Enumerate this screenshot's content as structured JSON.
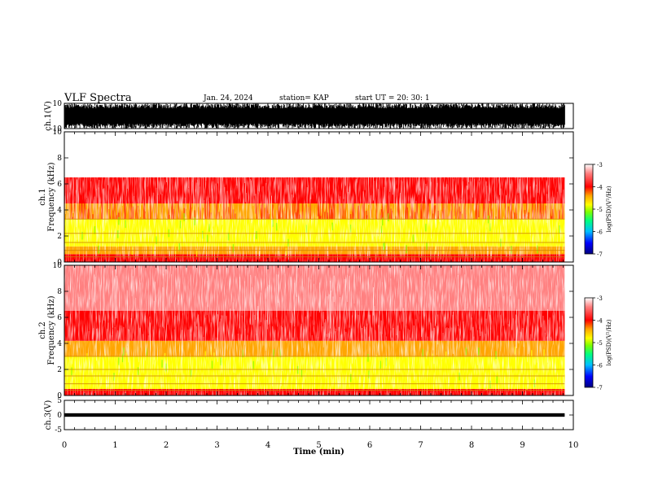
{
  "header": {
    "title": "VLF Spectra",
    "date": "Jan. 24, 2024",
    "station": "station= KAP",
    "start": "start  UT =   20: 30: 1"
  },
  "colors": {
    "background": "#ffffff",
    "axis": "#000000",
    "waveform": "#000000",
    "colormap": [
      "#000080",
      "#0000ff",
      "#00bfff",
      "#00ff80",
      "#80ff00",
      "#ffff00",
      "#ffa500",
      "#ff0000",
      "#ff8080",
      "#ffffff"
    ]
  },
  "chart_data": [
    {
      "type": "line",
      "panel": "ch1-waveform",
      "ylabel": "ch.1(V)",
      "xlim": [
        0,
        10
      ],
      "ylim": [
        -10,
        10
      ],
      "yticks": [
        -10,
        10
      ],
      "signal": "dense noise clipping near ±10 V over 0–9.83 min"
    },
    {
      "type": "heatmap",
      "panel": "ch1-spectrogram",
      "ylabel": "ch.1\nFrequency (kHz)",
      "xlim": [
        0,
        10
      ],
      "ylim": [
        0,
        10
      ],
      "yticks": [
        0,
        2,
        4,
        6,
        8,
        10
      ],
      "colorbar": {
        "label": "log(PSD)(V²/Hz)",
        "range": [
          -7,
          -3
        ],
        "ticks": [
          -7,
          -6,
          -5,
          -4,
          -3
        ]
      },
      "bands_kHz": [
        {
          "from": 0,
          "to": 0.6,
          "level": -4.0
        },
        {
          "from": 0.6,
          "to": 1.2,
          "level": -4.3
        },
        {
          "from": 1.2,
          "to": 3.3,
          "level": -4.6
        },
        {
          "from": 3.3,
          "to": 4.5,
          "level": -4.2
        },
        {
          "from": 4.5,
          "to": 6.5,
          "level": -3.7
        },
        {
          "from": 6.5,
          "to": 10,
          "level": -3.2
        }
      ],
      "lines_kHz": [
        0.4,
        0.9,
        1.5,
        2.2,
        3.3
      ]
    },
    {
      "type": "heatmap",
      "panel": "ch2-spectrogram",
      "ylabel": "ch.2\nFrequency (kHz)",
      "xlim": [
        0,
        10
      ],
      "ylim": [
        0,
        10
      ],
      "yticks": [
        0,
        2,
        4,
        6,
        8,
        10
      ],
      "colorbar": {
        "label": "log(PSD)(V²/Hz)",
        "range": [
          -7,
          -3
        ],
        "ticks": [
          -7,
          -6,
          -5,
          -4,
          -3
        ]
      },
      "bands_kHz": [
        {
          "from": 0,
          "to": 0.5,
          "level": -4.0
        },
        {
          "from": 0.5,
          "to": 3.0,
          "level": -5.0
        },
        {
          "from": 3.0,
          "to": 4.2,
          "level": -4.4
        },
        {
          "from": 4.2,
          "to": 6.5,
          "level": -3.8
        },
        {
          "from": 6.5,
          "to": 10,
          "level": -3.3
        }
      ],
      "lines_kHz": [
        0.4,
        0.9,
        1.5,
        2.0,
        3.0
      ]
    },
    {
      "type": "line",
      "panel": "ch3-waveform",
      "ylabel": "ch.3(V)",
      "xlim": [
        0,
        10
      ],
      "ylim": [
        -5,
        5
      ],
      "yticks": [
        -5,
        0,
        5
      ],
      "signal": "flat band near 0 V over 0–9.83 min"
    }
  ],
  "xaxis": {
    "label": "Time (min)",
    "ticks": [
      0,
      1,
      2,
      3,
      4,
      5,
      6,
      7,
      8,
      9,
      10
    ],
    "data_end": 9.83
  }
}
